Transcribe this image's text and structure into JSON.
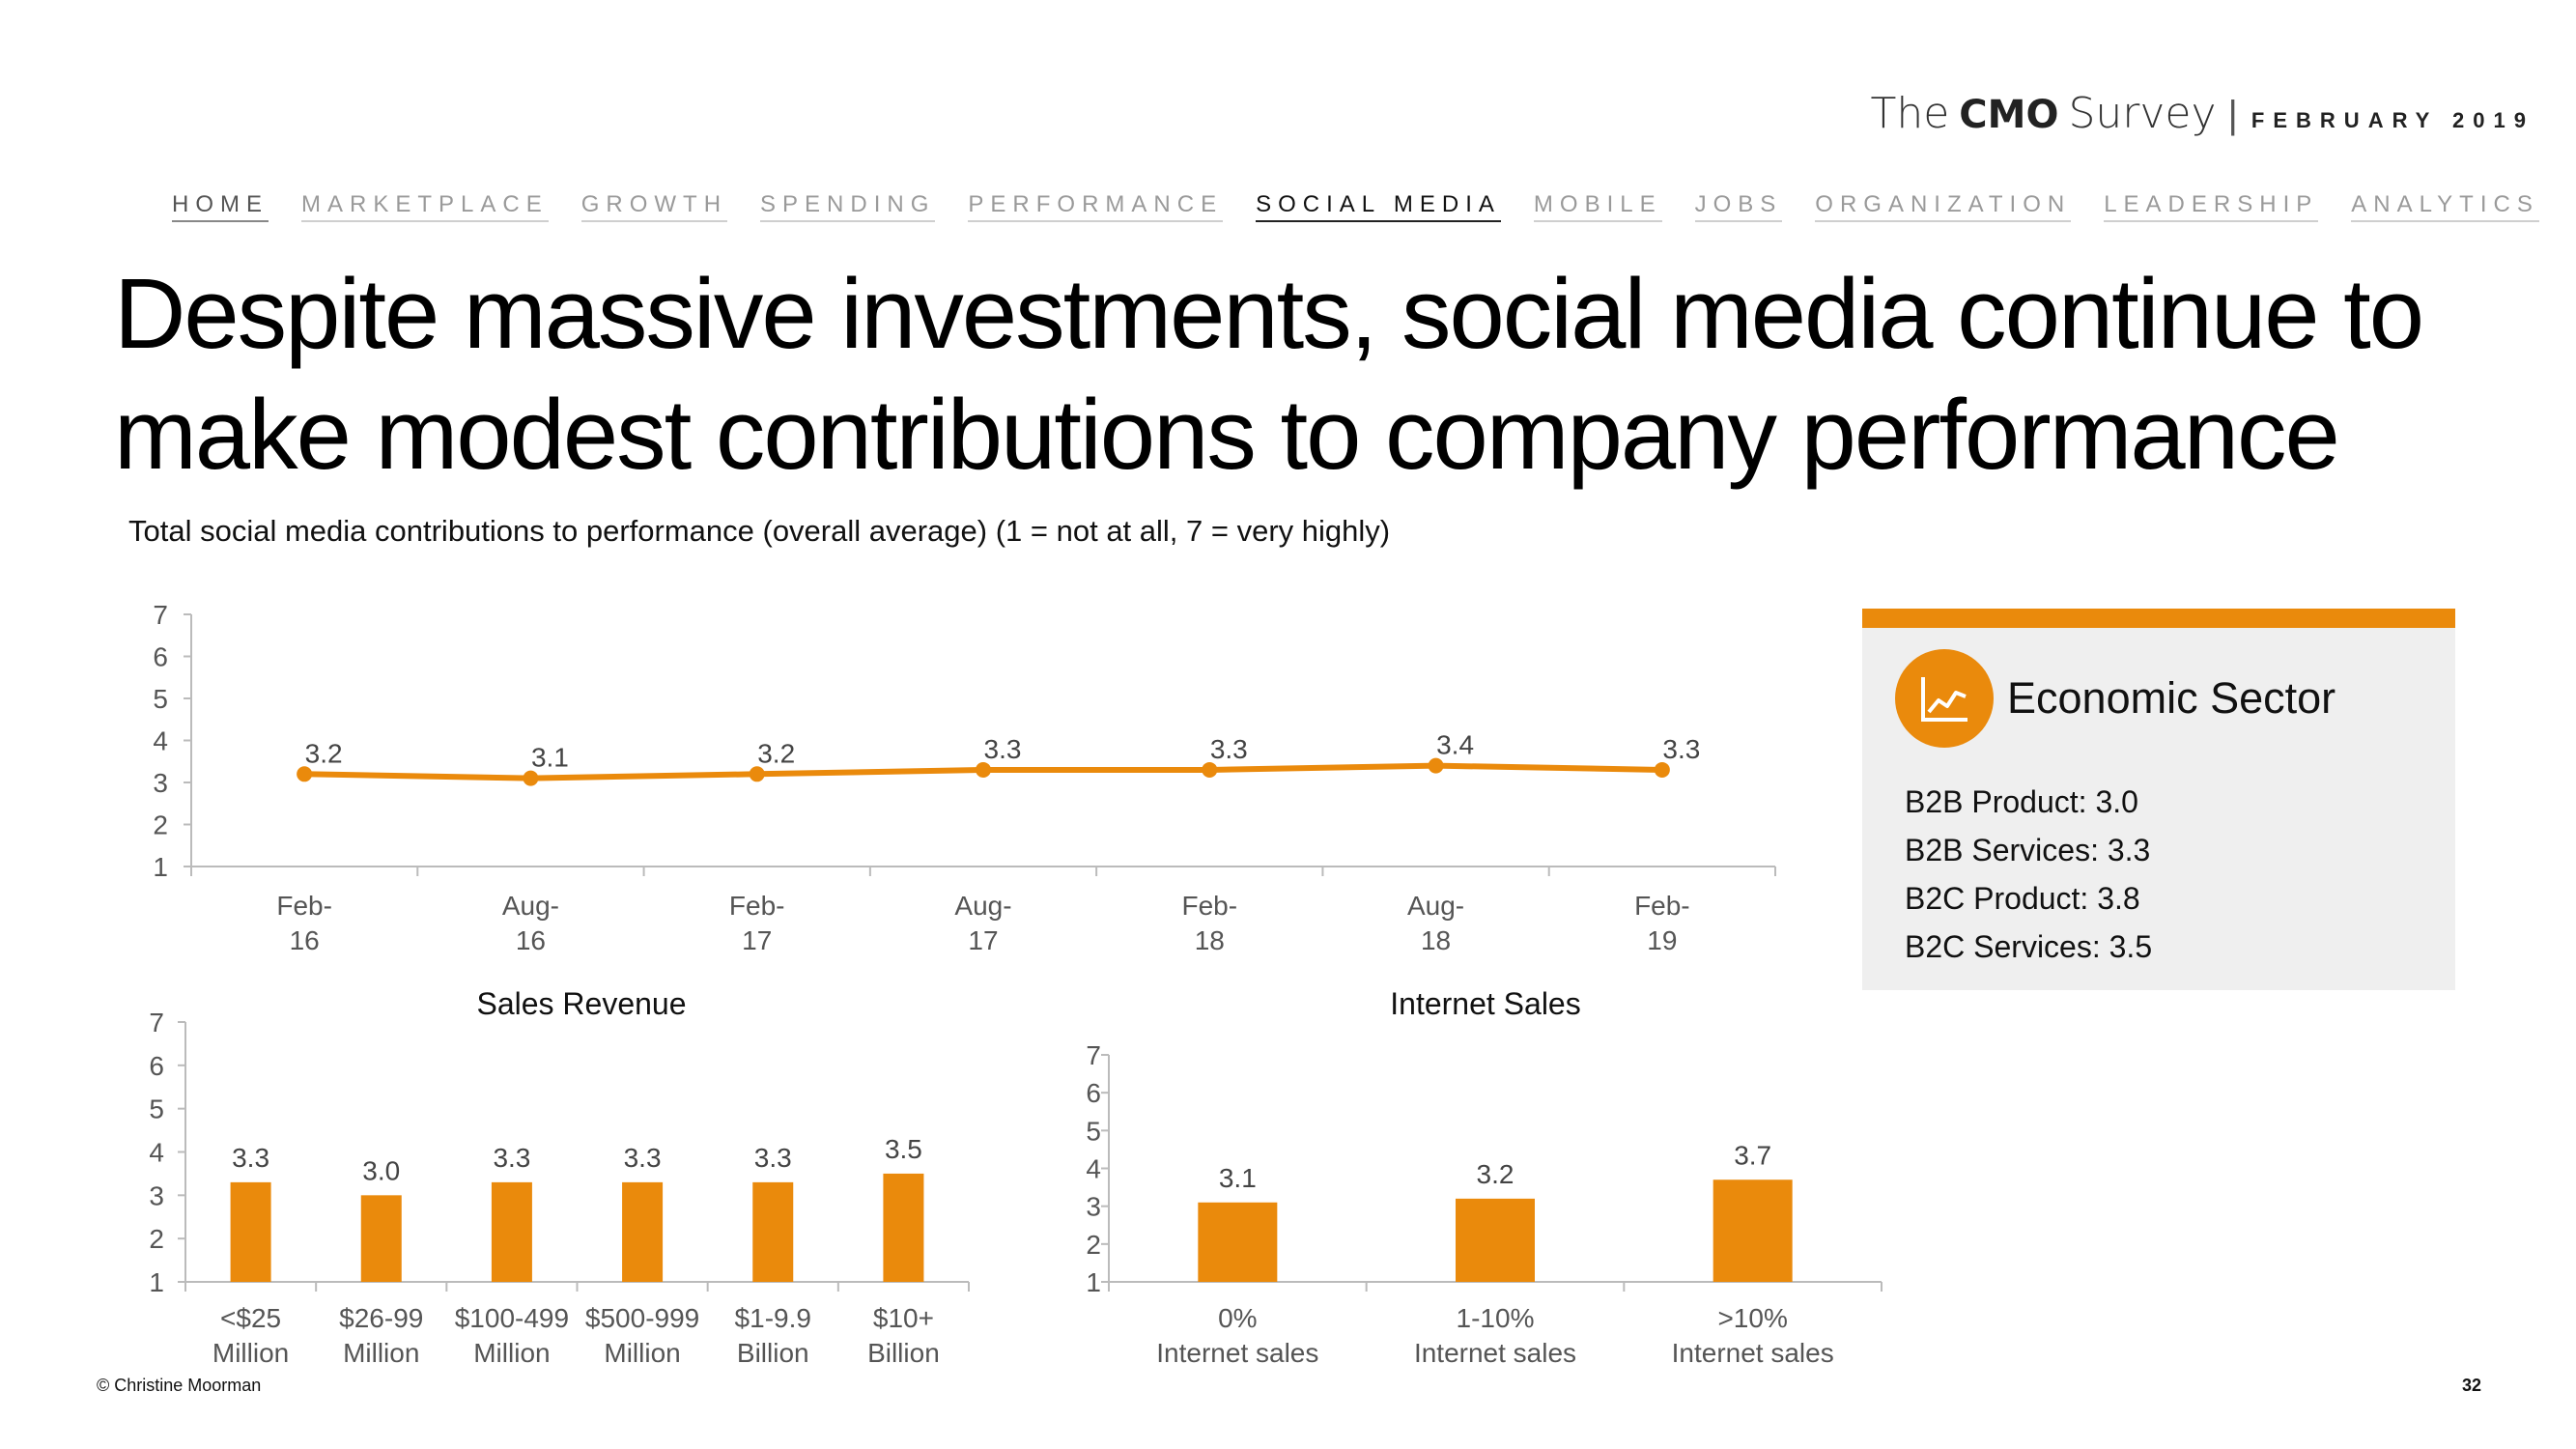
{
  "brand": {
    "the": "The",
    "cmo": "CMO",
    "survey": "Survey",
    "separator": "|",
    "date": "FEBRUARY 2019"
  },
  "nav": [
    "HOME",
    "MARKETPLACE",
    "GROWTH",
    "SPENDING",
    "PERFORMANCE",
    "SOCIAL MEDIA",
    "MOBILE",
    "JOBS",
    "ORGANIZATION",
    "LEADERSHIP",
    "ANALYTICS"
  ],
  "title": "Despite massive investments, social media continue to make modest contributions to company performance",
  "subtitle": "Total social media contributions to performance (overall average) (1 = not at all, 7 = very highly)",
  "colors": {
    "accent": "#EA8A0C",
    "axis": "#BBBBBB",
    "panel": "#EFEFEF"
  },
  "chart_data": [
    {
      "type": "line",
      "title": "",
      "categories": [
        "Feb-16",
        "Aug-16",
        "Feb-17",
        "Aug-17",
        "Feb-18",
        "Aug-18",
        "Feb-19"
      ],
      "category_lines": [
        [
          "Feb-",
          "16"
        ],
        [
          "Aug-",
          "16"
        ],
        [
          "Feb-",
          "17"
        ],
        [
          "Aug-",
          "17"
        ],
        [
          "Feb-",
          "18"
        ],
        [
          "Aug-",
          "18"
        ],
        [
          "Feb-",
          "19"
        ]
      ],
      "values": [
        3.2,
        3.1,
        3.2,
        3.3,
        3.3,
        3.4,
        3.3
      ],
      "value_labels": [
        "3.2",
        "3.1",
        "3.2",
        "3.3",
        "3.3",
        "3.4",
        "3.3"
      ],
      "ylim": [
        1,
        7
      ],
      "yticks": [
        1,
        2,
        3,
        4,
        5,
        6,
        7
      ],
      "xlabel": "",
      "ylabel": "",
      "grid": false
    },
    {
      "type": "bar",
      "title": "Sales Revenue",
      "categories": [
        "<$25 Million",
        "$26-99 Million",
        "$100-499 Million",
        "$500-999 Million",
        "$1-9.9 Billion",
        "$10+ Billion"
      ],
      "category_lines": [
        [
          "<$25",
          "Million"
        ],
        [
          "$26-99",
          "Million"
        ],
        [
          "$100-499",
          "Million"
        ],
        [
          "$500-999",
          "Million"
        ],
        [
          "$1-9.9",
          "Billion"
        ],
        [
          "$10+",
          "Billion"
        ]
      ],
      "values": [
        3.3,
        3.0,
        3.3,
        3.3,
        3.3,
        3.5
      ],
      "value_labels": [
        "3.3",
        "3.0",
        "3.3",
        "3.3",
        "3.3",
        "3.5"
      ],
      "ylim": [
        1,
        7
      ],
      "yticks": [
        1,
        2,
        3,
        4,
        5,
        6,
        7
      ],
      "xlabel": "",
      "ylabel": "",
      "grid": false
    },
    {
      "type": "bar",
      "title": "Internet Sales",
      "categories": [
        "0% Internet sales",
        "1-10% Internet sales",
        ">10% Internet sales"
      ],
      "category_lines": [
        [
          "0%",
          "Internet sales"
        ],
        [
          "1-10%",
          "Internet sales"
        ],
        [
          ">10%",
          "Internet sales"
        ]
      ],
      "values": [
        3.1,
        3.2,
        3.7
      ],
      "value_labels": [
        "3.1",
        "3.2",
        "3.7"
      ],
      "ylim": [
        1,
        7
      ],
      "yticks": [
        1,
        2,
        3,
        4,
        5,
        6,
        7
      ],
      "xlabel": "",
      "ylabel": "",
      "grid": false
    }
  ],
  "sector": {
    "icon": "line-chart-icon",
    "title": "Economic Sector",
    "items": [
      "B2B Product: 3.0",
      "B2B Services: 3.3",
      "B2C Product: 3.8",
      "B2C Services: 3.5"
    ]
  },
  "footer": {
    "copyright": "© Christine Moorman",
    "page": "32"
  }
}
